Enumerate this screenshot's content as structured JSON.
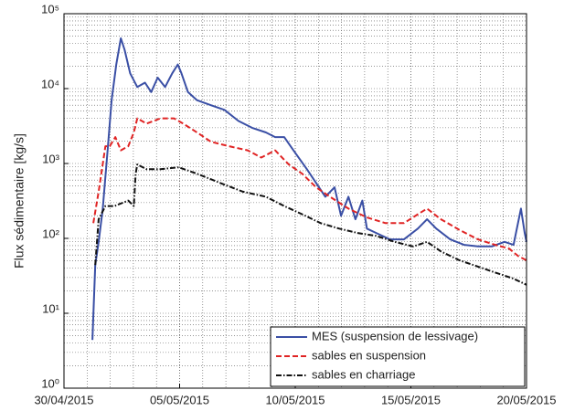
{
  "chart_data": {
    "type": "line",
    "ylabel": "Flux sédimentaire [kg/s]",
    "log_y": true,
    "grid": true,
    "minor_grid": true,
    "legend": "lower right",
    "xlim": [
      0,
      20
    ],
    "xticks": [
      {
        "value": 0,
        "label": "30/04/2015"
      },
      {
        "value": 5,
        "label": "05/05/2015"
      },
      {
        "value": 10,
        "label": "10/05/2015"
      },
      {
        "value": 15,
        "label": "15/05/2015"
      },
      {
        "value": 20,
        "label": "20/05/2015"
      }
    ],
    "ylim": [
      1,
      100000
    ],
    "yticks": [
      {
        "value": 1,
        "label": "10⁰"
      },
      {
        "value": 10,
        "label": "10¹"
      },
      {
        "value": 100,
        "label": "10²"
      },
      {
        "value": 1000,
        "label": "10³"
      },
      {
        "value": 10000,
        "label": "10⁴"
      },
      {
        "value": 100000,
        "label": "10⁵"
      }
    ],
    "series": [
      {
        "name": "MES (suspension de lessivage)",
        "color": "#3a4fa5",
        "dash": "solid",
        "x": [
          1.23,
          1.35,
          1.5,
          1.67,
          1.9,
          2.06,
          2.26,
          2.46,
          2.62,
          2.86,
          3.17,
          3.5,
          3.77,
          4.05,
          4.37,
          4.68,
          4.92,
          5.08,
          5.36,
          5.75,
          6.35,
          6.94,
          7.54,
          8.13,
          8.73,
          9.13,
          9.52,
          9.92,
          10.5,
          10.9,
          11.3,
          11.7,
          11.98,
          12.3,
          12.6,
          12.9,
          13.1,
          13.5,
          14.1,
          14.7,
          15.3,
          15.7,
          16.1,
          16.7,
          17.3,
          17.9,
          18.5,
          19.05,
          19.44,
          19.76,
          19.92,
          20.0
        ],
        "values": [
          4.4,
          44,
          90,
          240,
          1700,
          7000,
          21000,
          47000,
          33000,
          16000,
          10500,
          12000,
          9000,
          14000,
          10500,
          16000,
          21000,
          16000,
          9000,
          7000,
          6000,
          5200,
          3700,
          3000,
          2600,
          2250,
          2250,
          1500,
          840,
          550,
          360,
          480,
          200,
          360,
          180,
          320,
          135,
          118,
          97,
          97,
          135,
          180,
          135,
          97,
          82,
          78,
          78,
          90,
          82,
          250,
          118,
          90
        ]
      },
      {
        "name": "sables en suspension",
        "color": "#e02424",
        "dash": "dashed",
        "x": [
          1.27,
          1.5,
          1.79,
          1.98,
          2.22,
          2.46,
          2.78,
          3.02,
          3.17,
          3.57,
          4.17,
          4.76,
          5.16,
          5.75,
          6.35,
          7.14,
          7.94,
          8.53,
          9.13,
          9.72,
          10.3,
          10.9,
          11.5,
          12.3,
          13.1,
          13.9,
          14.7,
          15.3,
          15.7,
          16.3,
          17.1,
          17.9,
          18.65,
          19.25,
          19.64,
          20.0
        ],
        "values": [
          160,
          420,
          1700,
          1700,
          2250,
          1500,
          1700,
          2600,
          4000,
          3400,
          4000,
          4000,
          3400,
          2600,
          1950,
          1700,
          1500,
          1200,
          1500,
          970,
          730,
          480,
          360,
          250,
          190,
          160,
          160,
          210,
          250,
          180,
          130,
          97,
          82,
          73,
          58,
          51
        ]
      },
      {
        "name": "sables en charriage",
        "color": "#111111",
        "dash": "dashdot",
        "x": [
          1.35,
          1.5,
          1.79,
          2.18,
          2.78,
          3.02,
          3.1,
          3.17,
          3.57,
          4.17,
          4.96,
          5.75,
          6.75,
          7.74,
          8.73,
          9.52,
          10.3,
          11.1,
          11.9,
          12.7,
          13.5,
          14.3,
          15.1,
          15.7,
          16.3,
          17.1,
          17.9,
          18.65,
          19.44,
          20.0
        ],
        "values": [
          44,
          180,
          270,
          270,
          320,
          270,
          730,
          970,
          840,
          840,
          890,
          730,
          550,
          420,
          360,
          270,
          210,
          160,
          135,
          118,
          108,
          90,
          78,
          90,
          67,
          51,
          42,
          35,
          29,
          24
        ]
      }
    ]
  }
}
